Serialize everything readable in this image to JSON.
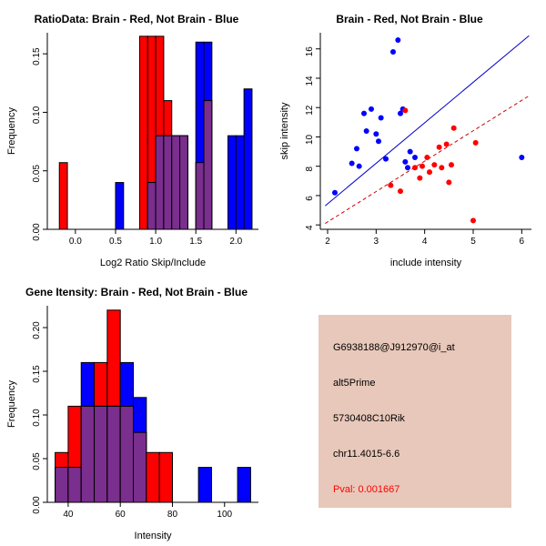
{
  "page": {
    "background": "#FFFFFF"
  },
  "chart_data": [
    {
      "id": "ratio-hist",
      "type": "histogram",
      "title": "RatioData: Brain - Red, Not Brain - Blue",
      "xlabel": "Log2 Ratio Skip/Include",
      "ylabel": "Frequency",
      "xlim": [
        -0.35,
        2.28
      ],
      "ylim": [
        0,
        0.168
      ],
      "xticks": [
        0,
        0.5,
        1,
        1.5,
        2
      ],
      "xtick_labels": [
        "0.0",
        "0.5",
        "1.0",
        "1.5",
        "2.0"
      ],
      "yticks": [
        0,
        0.05,
        0.1,
        0.15
      ],
      "ytick_labels": [
        "0.00",
        "0.05",
        "0.10",
        "0.15"
      ],
      "bin_width": 0.1,
      "overlap_color": "#7A2E8E",
      "series": [
        {
          "name": "Brain",
          "color": "#FF0000",
          "bins": [
            [
              -0.2,
              0.057
            ],
            [
              0.8,
              0.165
            ],
            [
              0.9,
              0.165
            ],
            [
              1.0,
              0.165
            ],
            [
              1.1,
              0.11
            ],
            [
              1.2,
              0.08
            ],
            [
              1.3,
              0.08
            ],
            [
              1.5,
              0.057
            ],
            [
              1.6,
              0.11
            ]
          ]
        },
        {
          "name": "Not Brain",
          "color": "#0000FF",
          "bins": [
            [
              0.5,
              0.04
            ],
            [
              0.9,
              0.04
            ],
            [
              1.0,
              0.08
            ],
            [
              1.1,
              0.08
            ],
            [
              1.2,
              0.08
            ],
            [
              1.3,
              0.08
            ],
            [
              1.5,
              0.16
            ],
            [
              1.6,
              0.16
            ],
            [
              1.9,
              0.08
            ],
            [
              2.0,
              0.08
            ],
            [
              2.1,
              0.12
            ]
          ]
        }
      ]
    },
    {
      "id": "intensity-scatter",
      "type": "scatter",
      "title": "Brain - Red, Not Brain - Blue",
      "xlabel": "include intensity",
      "ylabel": "skip intensity",
      "xlim": [
        1.85,
        6.2
      ],
      "ylim": [
        3.7,
        17.1
      ],
      "xticks": [
        2,
        3,
        4,
        5,
        6
      ],
      "xtick_labels": [
        "2",
        "3",
        "4",
        "5",
        "6"
      ],
      "yticks": [
        4,
        6,
        8,
        10,
        12,
        14,
        16
      ],
      "ytick_labels": [
        "4",
        "6",
        "8",
        "10",
        "12",
        "14",
        "16"
      ],
      "lines": [
        {
          "name": "not-brain-fit",
          "color": "#0000CD",
          "dash": false,
          "from": [
            1.95,
            5.3
          ],
          "to": [
            6.15,
            16.9
          ]
        },
        {
          "name": "brain-fit",
          "color": "#CD0000",
          "dash": true,
          "from": [
            1.95,
            4.1
          ],
          "to": [
            6.15,
            12.8
          ]
        }
      ],
      "series": [
        {
          "name": "Not Brain",
          "color": "#0000FF",
          "points": [
            [
              2.15,
              6.2
            ],
            [
              2.5,
              8.2
            ],
            [
              2.6,
              9.2
            ],
            [
              2.65,
              8.0
            ],
            [
              2.75,
              11.6
            ],
            [
              2.8,
              10.4
            ],
            [
              2.9,
              11.9
            ],
            [
              3.0,
              10.2
            ],
            [
              3.05,
              9.7
            ],
            [
              3.1,
              11.3
            ],
            [
              3.2,
              8.5
            ],
            [
              3.35,
              15.8
            ],
            [
              3.45,
              16.6
            ],
            [
              3.5,
              11.6
            ],
            [
              3.55,
              11.9
            ],
            [
              3.6,
              8.3
            ],
            [
              3.65,
              7.9
            ],
            [
              3.7,
              9.0
            ],
            [
              3.8,
              8.6
            ],
            [
              6.0,
              8.6
            ]
          ]
        },
        {
          "name": "Brain",
          "color": "#FF0000",
          "points": [
            [
              3.3,
              6.7
            ],
            [
              3.5,
              6.3
            ],
            [
              3.6,
              11.8
            ],
            [
              3.8,
              7.9
            ],
            [
              3.9,
              7.2
            ],
            [
              3.95,
              8.0
            ],
            [
              4.05,
              8.6
            ],
            [
              4.1,
              7.6
            ],
            [
              4.2,
              8.1
            ],
            [
              4.3,
              9.3
            ],
            [
              4.35,
              7.9
            ],
            [
              4.45,
              9.5
            ],
            [
              4.5,
              6.9
            ],
            [
              4.55,
              8.1
            ],
            [
              4.6,
              10.6
            ],
            [
              5.0,
              4.3
            ],
            [
              5.05,
              9.6
            ]
          ]
        }
      ]
    },
    {
      "id": "gene-hist",
      "type": "histogram",
      "title": "Gene Itensity: Brain - Red, Not Brain - Blue",
      "xlabel": "Intensity",
      "ylabel": "Frequency",
      "xlim": [
        32,
        113
      ],
      "ylim": [
        0,
        0.225
      ],
      "xticks": [
        40,
        60,
        80,
        100
      ],
      "xtick_labels": [
        "40",
        "60",
        "80",
        "100"
      ],
      "yticks": [
        0,
        0.05,
        0.1,
        0.15,
        0.2
      ],
      "ytick_labels": [
        "0.00",
        "0.05",
        "0.10",
        "0.15",
        "0.20"
      ],
      "bin_width": 5,
      "overlap_color": "#7A2E8E",
      "series": [
        {
          "name": "Brain",
          "color": "#FF0000",
          "bins": [
            [
              35,
              0.057
            ],
            [
              40,
              0.11
            ],
            [
              45,
              0.11
            ],
            [
              50,
              0.16
            ],
            [
              55,
              0.22
            ],
            [
              60,
              0.11
            ],
            [
              65,
              0.08
            ],
            [
              70,
              0.057
            ],
            [
              75,
              0.057
            ]
          ]
        },
        {
          "name": "Not Brain",
          "color": "#0000FF",
          "bins": [
            [
              35,
              0.04
            ],
            [
              40,
              0.04
            ],
            [
              45,
              0.16
            ],
            [
              50,
              0.11
            ],
            [
              55,
              0.11
            ],
            [
              60,
              0.16
            ],
            [
              65,
              0.12
            ],
            [
              90,
              0.04
            ],
            [
              105,
              0.04
            ]
          ]
        }
      ]
    }
  ],
  "info_panel": {
    "bg": "#E8C8BA",
    "lines": [
      {
        "text": "G6938188@J912970@i_at",
        "color": "#000000"
      },
      {
        "text": "alt5Prime",
        "color": "#000000"
      },
      {
        "text": "5730408C10Rik",
        "color": "#000000"
      },
      {
        "text": "chr11.4015-6.6",
        "color": "#000000"
      },
      {
        "text": "Pval: 0.001667",
        "color": "#FF0000"
      }
    ]
  }
}
